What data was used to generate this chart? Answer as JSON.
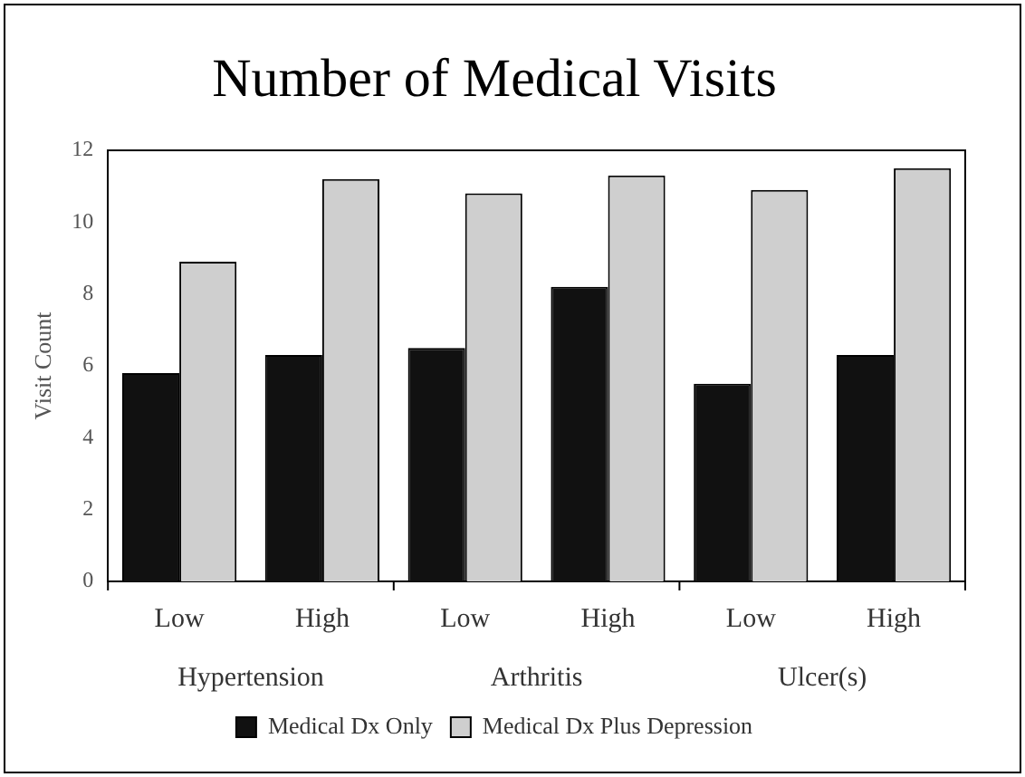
{
  "chart_data": {
    "type": "bar",
    "title": "Number of Medical Visits",
    "ylabel": "Visit Count",
    "categories": [
      "Low",
      "High",
      "Low",
      "High",
      "Low",
      "High"
    ],
    "annotations": [
      "Hypertension",
      "Arthritis",
      "Ulcer(s)"
    ],
    "series": [
      {
        "name": "Medical Dx Only",
        "color": "#111111",
        "values": [
          5.8,
          6.3,
          6.5,
          8.2,
          5.5,
          6.3
        ]
      },
      {
        "name": "Medical Dx Plus Depression",
        "color": "#cfcfcf",
        "values": [
          8.9,
          11.2,
          10.8,
          11.3,
          10.9,
          11.5
        ]
      }
    ],
    "ylim": [
      0,
      12
    ],
    "yticks": [
      0,
      2,
      4,
      6,
      8,
      10,
      12
    ],
    "grid": false,
    "legend": "bottom"
  }
}
